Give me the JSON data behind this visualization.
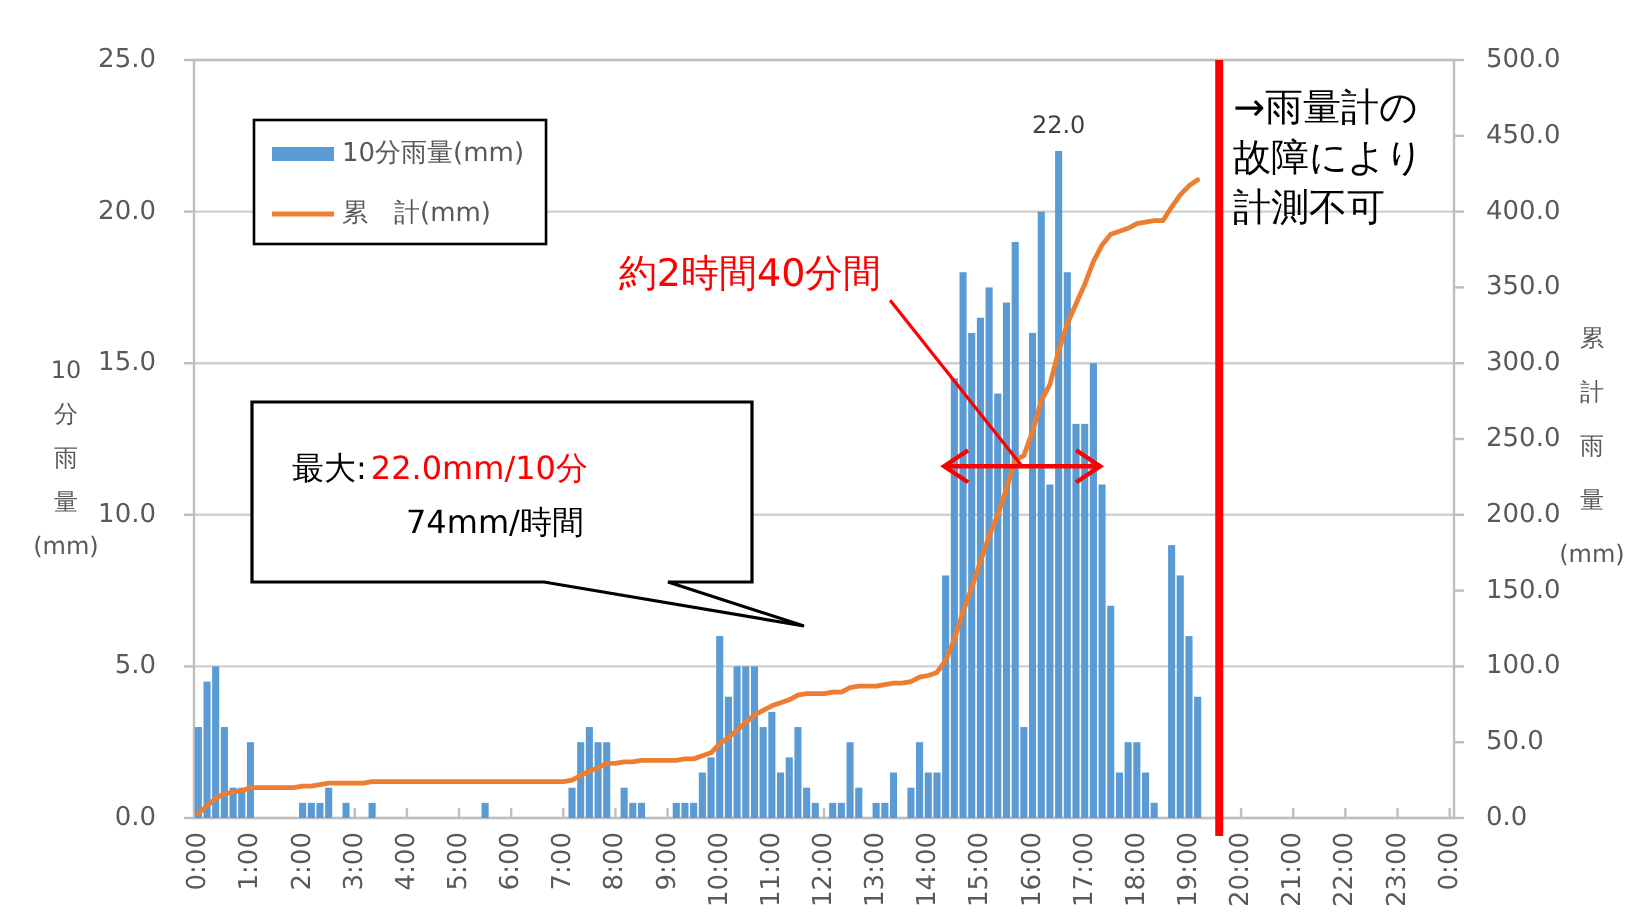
{
  "chart_data": {
    "type": "bar",
    "xlim": [
      -0.083,
      24.083
    ],
    "xticks": [
      {
        "value": 0,
        "label": "0:00"
      },
      {
        "value": 1,
        "label": "1:00"
      },
      {
        "value": 2,
        "label": "2:00"
      },
      {
        "value": 3,
        "label": "3:00"
      },
      {
        "value": 4,
        "label": "4:00"
      },
      {
        "value": 5,
        "label": "5:00"
      },
      {
        "value": 6,
        "label": "6:00"
      },
      {
        "value": 7,
        "label": "7:00"
      },
      {
        "value": 8,
        "label": "8:00"
      },
      {
        "value": 9,
        "label": "9:00"
      },
      {
        "value": 10,
        "label": "10:00"
      },
      {
        "value": 11,
        "label": "11:00"
      },
      {
        "value": 12,
        "label": "12:00"
      },
      {
        "value": 13,
        "label": "13:00"
      },
      {
        "value": 14,
        "label": "14:00"
      },
      {
        "value": 15,
        "label": "15:00"
      },
      {
        "value": 16,
        "label": "16:00"
      },
      {
        "value": 17,
        "label": "17:00"
      },
      {
        "value": 18,
        "label": "18:00"
      },
      {
        "value": 19,
        "label": "19:00"
      },
      {
        "value": 20,
        "label": "20:00"
      },
      {
        "value": 21,
        "label": "21:00"
      },
      {
        "value": 22,
        "label": "22:00"
      },
      {
        "value": 23,
        "label": "23:00"
      },
      {
        "value": 24,
        "label": "0:00"
      }
    ],
    "ylim": [
      0,
      25
    ],
    "yticks": [
      {
        "value": 0,
        "label": "0.0"
      },
      {
        "value": 5,
        "label": "5.0"
      },
      {
        "value": 10,
        "label": "10.0"
      },
      {
        "value": 15,
        "label": "15.0"
      },
      {
        "value": 20,
        "label": "20.0"
      },
      {
        "value": 25,
        "label": "25.0"
      }
    ],
    "y2lim": [
      0,
      500
    ],
    "y2ticks": [
      {
        "value": 0,
        "label": "0.0"
      },
      {
        "value": 50,
        "label": "50.0"
      },
      {
        "value": 100,
        "label": "100.0"
      },
      {
        "value": 150,
        "label": "150.0"
      },
      {
        "value": 200,
        "label": "200.0"
      },
      {
        "value": 250,
        "label": "250.0"
      },
      {
        "value": 300,
        "label": "300.0"
      },
      {
        "value": 350,
        "label": "350.0"
      },
      {
        "value": 400,
        "label": "400.0"
      },
      {
        "value": 450,
        "label": "450.0"
      },
      {
        "value": 500,
        "label": "500.0"
      }
    ],
    "ylabel": "10分雨量(mm)",
    "y2label": "累計雨量(mm)",
    "grid": "y",
    "legend": "top left",
    "series": [
      {
        "name": "10分雨量(mm)",
        "color": "#5b9bd5",
        "x": [
          0,
          0.167,
          0.333,
          0.5,
          0.667,
          0.833,
          1,
          2,
          2.167,
          2.333,
          2.5,
          2.833,
          3.333,
          5.5,
          7.167,
          7.333,
          7.5,
          7.667,
          7.833,
          8.167,
          8.333,
          8.5,
          9.167,
          9.333,
          9.5,
          9.667,
          9.833,
          10,
          10.167,
          10.333,
          10.5,
          10.667,
          10.833,
          11,
          11.167,
          11.333,
          11.5,
          11.667,
          11.833,
          12.167,
          12.333,
          12.5,
          12.667,
          13,
          13.167,
          13.333,
          13.667,
          13.833,
          14,
          14.167,
          14.333,
          14.5,
          14.667,
          14.833,
          15,
          15.167,
          15.333,
          15.5,
          15.667,
          15.833,
          16,
          16.167,
          16.333,
          16.5,
          16.667,
          16.833,
          17,
          17.167,
          17.333,
          17.5,
          17.667,
          17.833,
          18,
          18.167,
          18.333,
          18.667,
          18.833,
          19,
          19.167
        ],
        "values": [
          3.0,
          4.5,
          5.0,
          3.0,
          1.0,
          1.0,
          2.5,
          0.5,
          0.5,
          0.5,
          1.0,
          0.5,
          0.5,
          0.5,
          1.0,
          2.5,
          3.0,
          2.5,
          2.5,
          1.0,
          0.5,
          0.5,
          0.5,
          0.5,
          0.5,
          1.5,
          2.0,
          6.0,
          4.0,
          5.0,
          5.0,
          5.0,
          3.0,
          3.5,
          1.5,
          2.0,
          3.0,
          1.0,
          0.5,
          0.5,
          0.5,
          2.5,
          1.0,
          0.5,
          0.5,
          1.5,
          1.0,
          2.5,
          1.5,
          1.5,
          8.0,
          14.5,
          18.0,
          16.0,
          16.5,
          17.5,
          14.0,
          17.0,
          19.0,
          3.0,
          16.0,
          20.0,
          11.0,
          22.0,
          18.0,
          13.0,
          13.0,
          15.0,
          11.0,
          7.0,
          1.5,
          2.5,
          2.5,
          1.5,
          0.5,
          9.0,
          8.0,
          6.0,
          4.0
        ],
        "value_labels": [
          null,
          null,
          null,
          null,
          null,
          null,
          null,
          null,
          null,
          null,
          null,
          null,
          null,
          null,
          null,
          null,
          null,
          null,
          null,
          null,
          null,
          null,
          null,
          null,
          null,
          null,
          null,
          null,
          null,
          null,
          null,
          null,
          null,
          null,
          null,
          null,
          null,
          null,
          null,
          null,
          null,
          null,
          null,
          null,
          null,
          null,
          null,
          null,
          null,
          null,
          null,
          null,
          null,
          null,
          null,
          null,
          null,
          null,
          null,
          null,
          null,
          null,
          null,
          "22.0",
          null,
          null,
          null,
          null,
          null,
          null,
          null,
          null,
          null,
          null,
          null,
          null,
          null,
          null,
          null
        ]
      },
      {
        "name": "累　計(mm)",
        "type": "line",
        "axis": "y2",
        "color": "#ed7d31",
        "x": [
          0,
          0.167,
          0.333,
          0.5,
          0.667,
          0.833,
          1,
          1.167,
          1.333,
          1.5,
          1.667,
          1.833,
          2,
          2.167,
          2.333,
          2.5,
          2.667,
          2.833,
          3,
          3.167,
          3.333,
          3.5,
          3.667,
          3.833,
          4,
          4.167,
          4.333,
          4.5,
          4.667,
          4.833,
          5,
          5.167,
          5.333,
          5.5,
          5.667,
          5.833,
          6,
          6.167,
          6.333,
          6.5,
          6.667,
          6.833,
          7,
          7.167,
          7.333,
          7.5,
          7.667,
          7.833,
          8,
          8.167,
          8.333,
          8.5,
          8.667,
          8.833,
          9,
          9.167,
          9.333,
          9.5,
          9.667,
          9.833,
          10,
          10.167,
          10.333,
          10.5,
          10.667,
          10.833,
          11,
          11.167,
          11.333,
          11.5,
          11.667,
          11.833,
          12,
          12.167,
          12.333,
          12.5,
          12.667,
          12.833,
          13,
          13.167,
          13.333,
          13.5,
          13.667,
          13.833,
          14,
          14.167,
          14.333,
          14.5,
          14.667,
          14.833,
          15,
          15.167,
          15.333,
          15.5,
          15.667,
          15.833,
          16,
          16.167,
          16.333,
          16.5,
          16.667,
          16.833,
          17,
          17.167,
          17.333,
          17.5,
          17.667,
          17.833,
          18,
          18.167,
          18.333,
          18.5,
          18.667,
          18.833,
          19,
          19.167
        ],
        "values": [
          3,
          8,
          13,
          16,
          17,
          18,
          20,
          20,
          20,
          20,
          20,
          20,
          21,
          21,
          22,
          23,
          23,
          23,
          23,
          23,
          24,
          24,
          24,
          24,
          24,
          24,
          24,
          24,
          24,
          24,
          24,
          24,
          24,
          24,
          24,
          24,
          24,
          24,
          24,
          24,
          24,
          24,
          24,
          25,
          28,
          31,
          33,
          36,
          36,
          37,
          37,
          38,
          38,
          38,
          38,
          38,
          39,
          39,
          41,
          43,
          49,
          53,
          58,
          63,
          68,
          71,
          74,
          76,
          78,
          81,
          82,
          82,
          82,
          83,
          83,
          86,
          87,
          87,
          87,
          88,
          89,
          89,
          90,
          93,
          94,
          96,
          104,
          118,
          136,
          152,
          169,
          186,
          200,
          217,
          236,
          239,
          255,
          275,
          286,
          308,
          326,
          339,
          352,
          367,
          378,
          385,
          387,
          389,
          392,
          393,
          394,
          394,
          403,
          411,
          417,
          421
        ]
      }
    ],
    "ref_lines": [
      {
        "axis": "x",
        "value": 19.58,
        "label": "→雨量計の故障により計測不可",
        "color": "#ff0000"
      }
    ],
    "annotations": [
      "最大:",
      "22.0mm/10分",
      "74mm/時間",
      {
        "text": "約2時間40分間",
        "x": 15.8,
        "y": 11.6
      }
    ]
  }
}
